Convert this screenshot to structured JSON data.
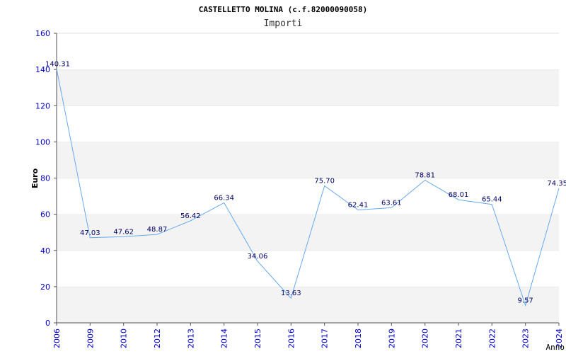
{
  "chart_data": {
    "type": "line",
    "title": "CASTELLETTO MOLINA (c.f.82000090058)",
    "subtitle": "Importi",
    "ylabel": "Euro",
    "xlabel": "Anno",
    "ylim": [
      0,
      160
    ],
    "yticks": [
      0,
      20,
      40,
      60,
      80,
      100,
      120,
      140,
      160
    ],
    "grid": true,
    "categories": [
      "2006",
      "2009",
      "2010",
      "2012",
      "2013",
      "2014",
      "2015",
      "2016",
      "2017",
      "2018",
      "2019",
      "2020",
      "2021",
      "2022",
      "2023",
      "2024"
    ],
    "series": [
      {
        "values": [
          140.31,
          47.03,
          47.62,
          48.87,
          56.42,
          66.34,
          34.06,
          13.63,
          75.7,
          62.41,
          63.61,
          78.81,
          68.01,
          65.44,
          9.57,
          74.35
        ],
        "labels": [
          "140.31",
          "47.03",
          "47.62",
          "48.87",
          "56.42",
          "66.34",
          "34.06",
          "13.63",
          "75.70",
          "62.41",
          "63.61",
          "78.81",
          "68.01",
          "65.44",
          "9.57",
          "74.35"
        ]
      }
    ],
    "colors": {
      "line": "#66aaee",
      "band": "#f3f3f3",
      "axis": "#555555",
      "tick": "#0000cc"
    }
  }
}
